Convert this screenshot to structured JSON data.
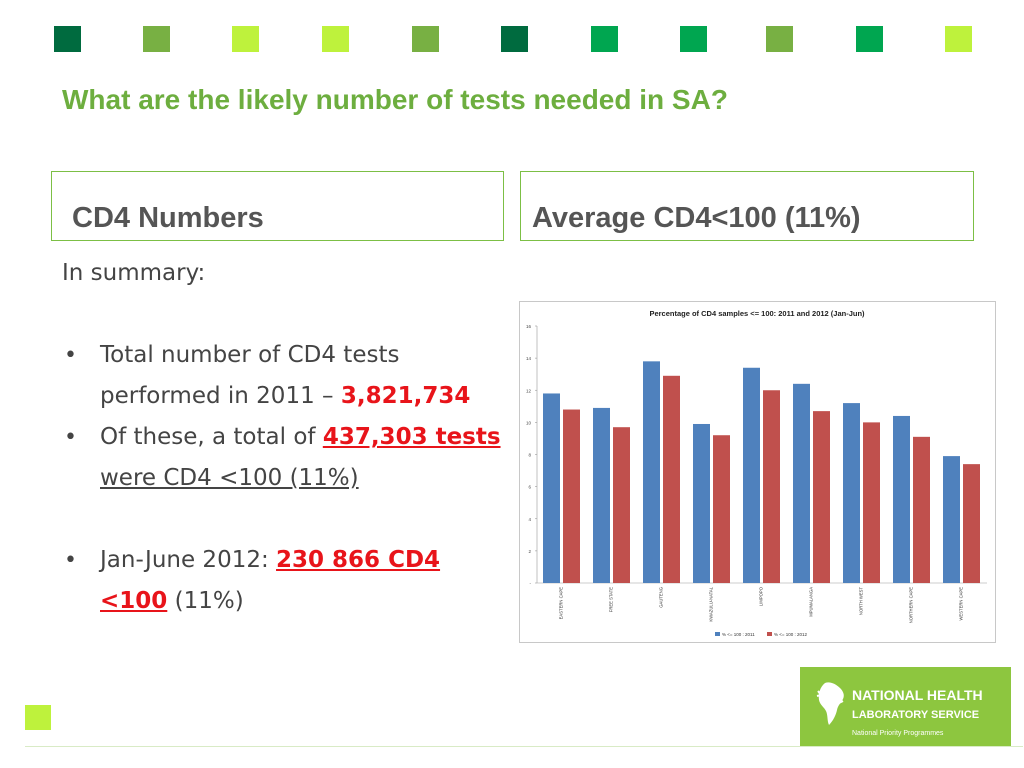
{
  "slide": {
    "title": "What are the likely number of tests needed in SA?",
    "deco_colors": [
      "#006b3f",
      "#78b043",
      "#bef23c",
      "#bef23c",
      "#78b043",
      "#006b3f",
      "#00a650",
      "#00a650",
      "#78b043",
      "#00a650",
      "#bef23c"
    ],
    "footer_square_color": "#bef23c"
  },
  "boxes": {
    "left_heading": "CD4 Numbers",
    "right_heading": "Average CD4<100 (11%)"
  },
  "summary": {
    "lead": "In summary:",
    "b1_pre": "Total number of CD4 tests performed in 2011 – ",
    "b1_value": "3,821,734",
    "b2_pre": "Of these, a total of ",
    "b2_value": "437,303 tests ",
    "b2_post": "were CD4 <100  (11%)",
    "b3_pre": "Jan-June 2012: ",
    "b3_value": "230 866 CD4 <100",
    "b3_post": " (11%)"
  },
  "logo": {
    "line1": "NATIONAL HEALTH",
    "line2": "LABORATORY SERVICE",
    "line3": "National Priority Programmes",
    "icon": "africa-hands-icon"
  },
  "chart_data": {
    "type": "bar",
    "title": "Percentage of CD4 samples <= 100: 2011 and 2012 (Jan-Jun)",
    "categories": [
      "EASTERN CAPE",
      "FREE STATE",
      "GAUTENG",
      "KWAZULU-NATAL",
      "LIMPOPO",
      "MPUMALANGA",
      "NORTH WEST",
      "NORTHERN CAPE",
      "WESTERN CAPE"
    ],
    "series": [
      {
        "name": "% <= 100 : 2011",
        "color": "#4f81bd",
        "values": [
          11.8,
          10.9,
          13.8,
          9.9,
          13.4,
          12.4,
          11.2,
          10.4,
          7.9
        ]
      },
      {
        "name": "% <= 100 : 2012",
        "color": "#c0504d",
        "values": [
          10.8,
          9.7,
          12.9,
          9.2,
          12.0,
          10.7,
          10.0,
          9.1,
          7.4
        ]
      }
    ],
    "ylim": [
      0,
      16
    ],
    "yticks": [
      0,
      2,
      4,
      6,
      8,
      10,
      12,
      14,
      16
    ],
    "ytick_labels": [
      "-",
      "2",
      "4",
      "6",
      "8",
      "10",
      "12",
      "14",
      "16"
    ],
    "grid": false,
    "legend_position": "bottom"
  }
}
